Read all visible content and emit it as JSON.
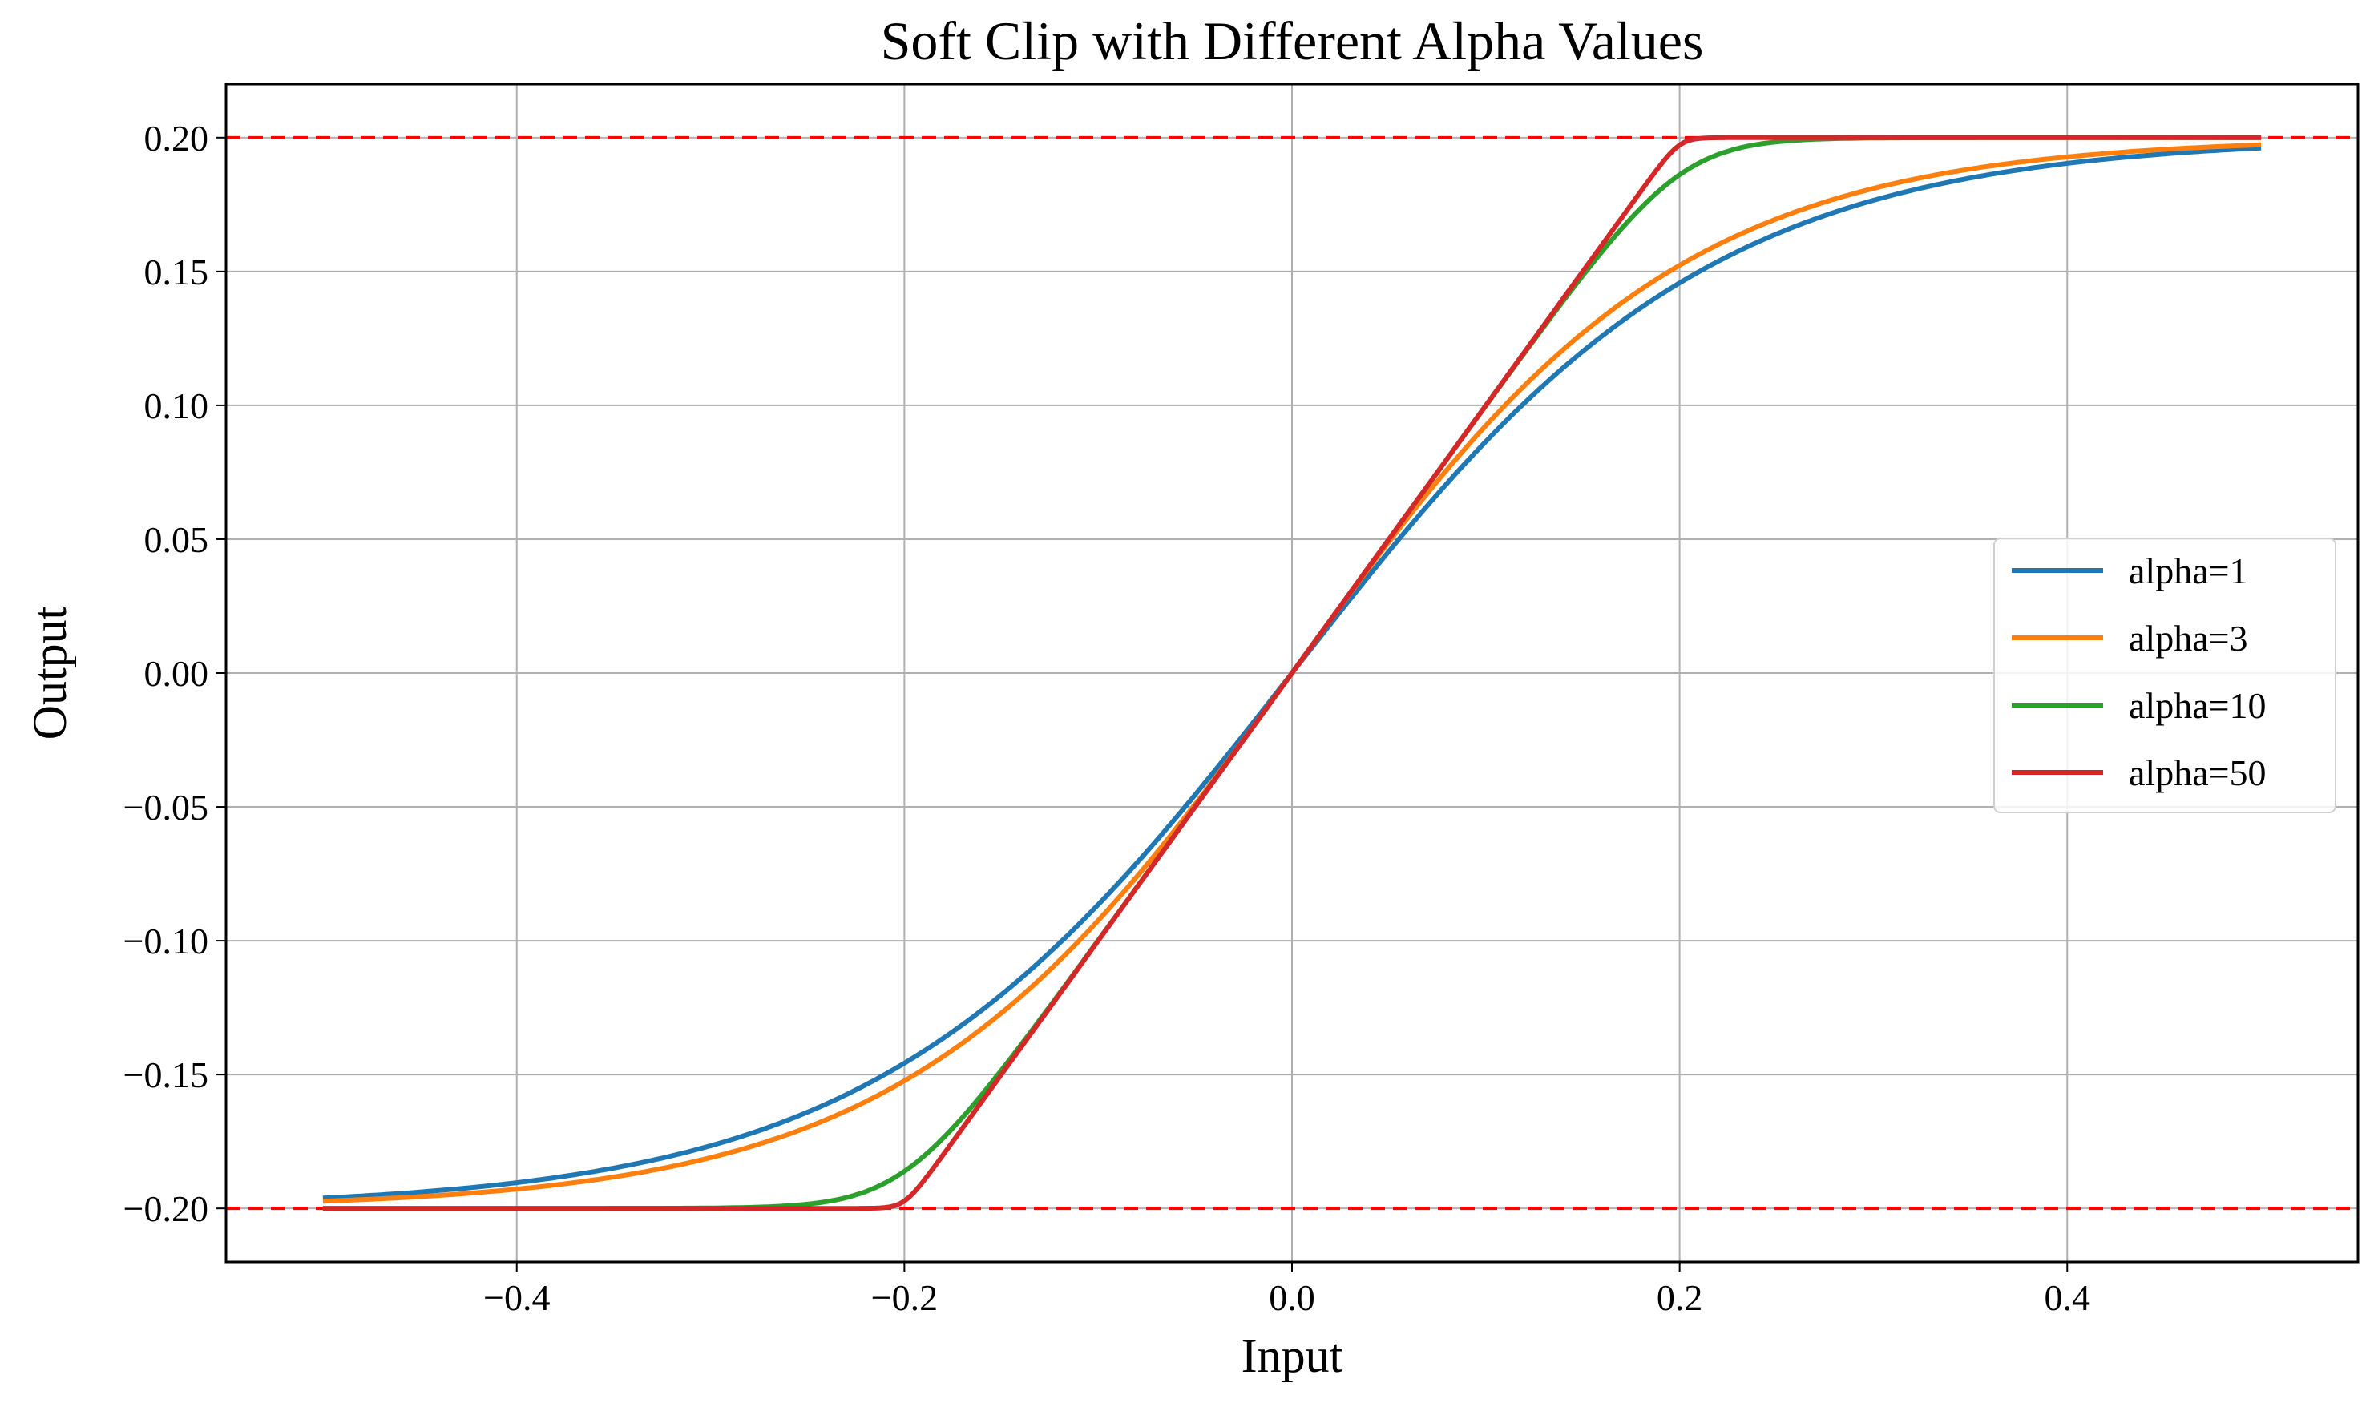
{
  "chart_data": {
    "type": "line",
    "title": "Soft Clip with Different Alpha Values",
    "xlabel": "Input",
    "ylabel": "Output",
    "xlim": [
      -0.55,
      0.55
    ],
    "ylim": [
      -0.22,
      0.22
    ],
    "grid": true,
    "legend_position": "center-right",
    "x_ticks": [
      -0.4,
      -0.2,
      0.0,
      0.2,
      0.4
    ],
    "x_tick_labels": [
      "−0.4",
      "−0.2",
      "0.0",
      "0.2",
      "0.4"
    ],
    "y_ticks": [
      -0.2,
      -0.15,
      -0.1,
      -0.05,
      0.0,
      0.05,
      0.1,
      0.15,
      0.2
    ],
    "y_tick_labels": [
      "−0.20",
      "−0.15",
      "−0.10",
      "−0.05",
      "0.00",
      "0.05",
      "0.10",
      "0.15",
      "0.20"
    ],
    "x_range": [
      -0.5,
      0.5
    ],
    "reference_lines": [
      {
        "y": 0.2,
        "color": "#ff0000",
        "style": "dashed"
      },
      {
        "y": -0.2,
        "color": "#ff0000",
        "style": "dashed"
      }
    ],
    "clip_limit": 0.2,
    "series": [
      {
        "name": "alpha=1",
        "alpha": 1,
        "color": "#1f77b4"
      },
      {
        "name": "alpha=3",
        "alpha": 3,
        "color": "#ff7f0e"
      },
      {
        "name": "alpha=10",
        "alpha": 10,
        "color": "#2ca02c"
      },
      {
        "name": "alpha=50",
        "alpha": 50,
        "color": "#d62728"
      }
    ]
  }
}
